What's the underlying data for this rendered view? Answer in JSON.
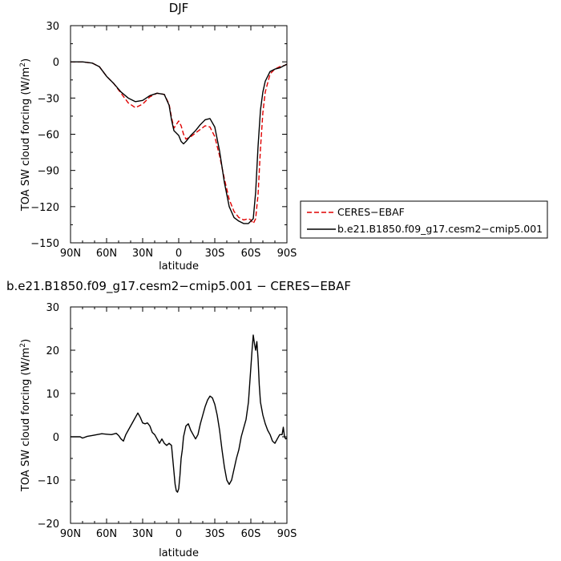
{
  "chart_data": [
    {
      "type": "line",
      "title": "DJF",
      "xlabel": "latitude",
      "ylabel": "TOA SW cloud forcing (W/m",
      "ylabel_sup": "2",
      "ylabel_tail": ")",
      "xlim": [
        90,
        -90
      ],
      "ylim": [
        -150,
        30
      ],
      "xticks": [
        90,
        60,
        30,
        0,
        -30,
        -60,
        -90
      ],
      "xtick_labels": [
        "90N",
        "60N",
        "30N",
        "0",
        "30S",
        "60S",
        "90S"
      ],
      "yticks": [
        30,
        0,
        -30,
        -60,
        -90,
        -120,
        -150
      ],
      "ytick_labels": [
        "30",
        "0",
        "−30",
        "−60",
        "−90",
        "−120",
        "−150"
      ],
      "legend": "outside-right",
      "series": [
        {
          "name": "CERES−EBAF",
          "color": "#e00000",
          "dash": "dashed",
          "x": [
            90,
            80,
            72,
            66,
            60,
            54,
            48,
            42,
            36,
            30,
            24,
            18,
            12,
            8,
            6,
            4,
            2,
            0,
            -2,
            -4,
            -6,
            -10,
            -14,
            -18,
            -22,
            -26,
            -30,
            -34,
            -38,
            -42,
            -46,
            -50,
            -54,
            -58,
            -60,
            -62,
            -64,
            -66,
            -68,
            -70,
            -72,
            -76,
            -80,
            -84,
            -88,
            -90
          ],
          "y": [
            0,
            0,
            -1,
            -4,
            -12,
            -18,
            -26,
            -34,
            -38,
            -35,
            -29,
            -26,
            -27,
            -35,
            -46,
            -55,
            -52,
            -49,
            -53,
            -60,
            -64,
            -62,
            -59,
            -56,
            -53,
            -54,
            -62,
            -78,
            -97,
            -114,
            -124,
            -129,
            -131,
            -130,
            -131,
            -134,
            -130,
            -110,
            -72,
            -42,
            -25,
            -10,
            -6,
            -4,
            -3,
            -2
          ]
        },
        {
          "name": "b.e21.B1850.f09_g17.cesm2−cmip5.001",
          "color": "#000000",
          "dash": "solid",
          "x": [
            90,
            80,
            72,
            66,
            60,
            54,
            48,
            42,
            36,
            30,
            24,
            18,
            12,
            8,
            6,
            4,
            2,
            0,
            -2,
            -4,
            -6,
            -10,
            -14,
            -18,
            -22,
            -26,
            -30,
            -34,
            -38,
            -42,
            -46,
            -50,
            -54,
            -58,
            -60,
            -62,
            -64,
            -66,
            -68,
            -70,
            -72,
            -76,
            -80,
            -84,
            -88,
            -90
          ],
          "y": [
            0,
            0,
            -1,
            -4,
            -12,
            -18,
            -25,
            -30,
            -33,
            -32,
            -28,
            -26,
            -27,
            -36,
            -48,
            -57,
            -59,
            -61,
            -66,
            -68,
            -66,
            -61,
            -57,
            -52,
            -48,
            -47,
            -54,
            -74,
            -100,
            -120,
            -129,
            -132,
            -134,
            -134,
            -132,
            -130,
            -108,
            -70,
            -40,
            -25,
            -16,
            -8,
            -6,
            -5,
            -3,
            -2
          ]
        }
      ]
    },
    {
      "type": "line",
      "title": "b.e21.B1850.f09_g17.cesm2−cmip5.001 − CERES−EBAF",
      "xlabel": "latitude",
      "ylabel": "TOA SW cloud forcing (W/m",
      "ylabel_sup": "2",
      "ylabel_tail": ")",
      "xlim": [
        90,
        -90
      ],
      "ylim": [
        -20,
        30
      ],
      "xticks": [
        90,
        60,
        30,
        0,
        -30,
        -60,
        -90
      ],
      "xtick_labels": [
        "90N",
        "60N",
        "30N",
        "0",
        "30S",
        "60S",
        "90S"
      ],
      "yticks": [
        30,
        20,
        10,
        0,
        -10,
        -20
      ],
      "ytick_labels": [
        "30",
        "20",
        "10",
        "0",
        "−10",
        "−20"
      ],
      "series": [
        {
          "color": "#000000",
          "dash": "solid",
          "x": [
            90,
            88,
            86,
            84,
            82,
            80,
            76,
            72,
            68,
            64,
            60,
            56,
            52,
            50,
            48,
            46,
            44,
            42,
            40,
            38,
            36,
            34,
            32,
            30,
            28,
            26,
            24,
            22,
            20,
            18,
            16,
            14,
            12,
            10,
            8,
            6,
            4,
            3,
            2,
            1,
            0,
            -1,
            -2,
            -3,
            -4,
            -6,
            -8,
            -10,
            -12,
            -14,
            -16,
            -18,
            -20,
            -22,
            -24,
            -26,
            -28,
            -30,
            -32,
            -34,
            -36,
            -38,
            -40,
            -42,
            -44,
            -46,
            -48,
            -50,
            -52,
            -54,
            -56,
            -58,
            -60,
            -61,
            -62,
            -63,
            -64,
            -65,
            -66,
            -67,
            -68,
            -70,
            -72,
            -74,
            -76,
            -78,
            -80,
            -82,
            -84,
            -86,
            -87,
            -88,
            -89,
            -90
          ],
          "y": [
            0,
            0,
            0,
            0,
            0,
            -0.3,
            0.1,
            0.3,
            0.5,
            0.7,
            0.6,
            0.5,
            0.8,
            0.3,
            -0.5,
            -1.0,
            0.5,
            1.5,
            2.5,
            3.5,
            4.5,
            5.5,
            4.5,
            3.2,
            3.0,
            3.2,
            2.5,
            1.0,
            0.5,
            -0.5,
            -1.5,
            -0.5,
            -1.5,
            -2.0,
            -1.5,
            -2.0,
            -8.0,
            -11.0,
            -12.5,
            -12.8,
            -12.0,
            -9.0,
            -5.0,
            -3.0,
            0.0,
            2.5,
            3.0,
            1.5,
            0.5,
            -0.5,
            0.5,
            3.0,
            5.0,
            7.0,
            8.5,
            9.4,
            9.0,
            7.5,
            5.0,
            1.5,
            -3.0,
            -7.0,
            -10.0,
            -11.0,
            -10.0,
            -7.5,
            -5.0,
            -3.0,
            0.0,
            2.0,
            4.0,
            8.0,
            16.0,
            20.0,
            23.5,
            21.5,
            20.0,
            22.0,
            18.0,
            12.0,
            8.0,
            5.0,
            3.0,
            1.5,
            0.5,
            -1.0,
            -1.5,
            -0.5,
            0.5,
            0.5,
            2.2,
            0.0,
            -0.5,
            -0.3
          ]
        }
      ]
    }
  ]
}
